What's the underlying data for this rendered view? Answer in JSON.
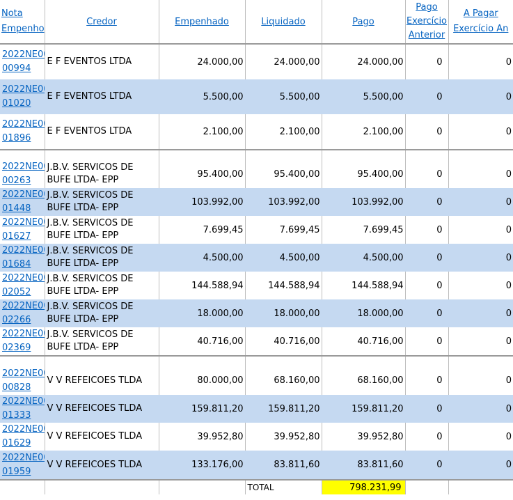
{
  "headers": {
    "nota": [
      "Nota",
      "Empenho"
    ],
    "credor": "Credor",
    "empenhado": "Empenhado",
    "liquidado": "Liquidado",
    "pago": "Pago",
    "pago_exercicio_anterior": [
      "Pago",
      "Exercício",
      "Anterior"
    ],
    "a_pagar": [
      "A Pagar",
      "Exercício An"
    ]
  },
  "colors": {
    "link": "#0563c1",
    "band": "#c5d9f1",
    "total_highlight": "#ffff00"
  },
  "groups": [
    {
      "rows": [
        {
          "nota": [
            "2022NE00",
            "00994"
          ],
          "credor": [
            "E F EVENTOS LTDA"
          ],
          "empenhado": "24.000,00",
          "liquidado": "24.000,00",
          "pago": "24.000,00",
          "pago_ant": "0",
          "a_pagar": "0"
        },
        {
          "nota": [
            "2022NE00",
            "01020"
          ],
          "credor": [
            "E F EVENTOS LTDA"
          ],
          "empenhado": "5.500,00",
          "liquidado": "5.500,00",
          "pago": "5.500,00",
          "pago_ant": "0",
          "a_pagar": "0"
        },
        {
          "nota": [
            "2022NE00",
            "01896"
          ],
          "credor": [
            "E F EVENTOS LTDA"
          ],
          "empenhado": "2.100,00",
          "liquidado": "2.100,00",
          "pago": "2.100,00",
          "pago_ant": "0",
          "a_pagar": "0"
        }
      ]
    },
    {
      "rows": [
        {
          "nota": [
            "2022NE00",
            "00263"
          ],
          "credor": [
            "J.B.V. SERVICOS DE",
            "BUFE LTDA- EPP"
          ],
          "empenhado": "95.400,00",
          "liquidado": "95.400,00",
          "pago": "95.400,00",
          "pago_ant": "0",
          "a_pagar": "0"
        },
        {
          "nota": [
            "2022NE00",
            "01448"
          ],
          "credor": [
            "J.B.V. SERVICOS DE",
            "BUFE LTDA- EPP"
          ],
          "empenhado": "103.992,00",
          "liquidado": "103.992,00",
          "pago": "103.992,00",
          "pago_ant": "0",
          "a_pagar": "0"
        },
        {
          "nota": [
            "2022NE00",
            "01627"
          ],
          "credor": [
            "J.B.V. SERVICOS DE",
            "BUFE LTDA- EPP"
          ],
          "empenhado": "7.699,45",
          "liquidado": "7.699,45",
          "pago": "7.699,45",
          "pago_ant": "0",
          "a_pagar": "0"
        },
        {
          "nota": [
            "2022NE00",
            "01684"
          ],
          "credor": [
            "J.B.V. SERVICOS DE",
            "BUFE LTDA- EPP"
          ],
          "empenhado": "4.500,00",
          "liquidado": "4.500,00",
          "pago": "4.500,00",
          "pago_ant": "0",
          "a_pagar": "0"
        },
        {
          "nota": [
            "2022NE00",
            "02052"
          ],
          "credor": [
            "J.B.V. SERVICOS DE",
            "BUFE LTDA- EPP"
          ],
          "empenhado": "144.588,94",
          "liquidado": "144.588,94",
          "pago": "144.588,94",
          "pago_ant": "0",
          "a_pagar": "0"
        },
        {
          "nota": [
            "2022NE00",
            "02266"
          ],
          "credor": [
            "J.B.V. SERVICOS DE",
            "BUFE LTDA- EPP"
          ],
          "empenhado": "18.000,00",
          "liquidado": "18.000,00",
          "pago": "18.000,00",
          "pago_ant": "0",
          "a_pagar": "0"
        },
        {
          "nota": [
            "2022NE00",
            "02369"
          ],
          "credor": [
            "J.B.V. SERVICOS DE",
            "BUFE LTDA- EPP"
          ],
          "empenhado": "40.716,00",
          "liquidado": "40.716,00",
          "pago": "40.716,00",
          "pago_ant": "0",
          "a_pagar": "0"
        }
      ]
    },
    {
      "rows": [
        {
          "nota": [
            "2022NE00",
            "00828"
          ],
          "credor": [
            "V V REFEICOES TLDA"
          ],
          "empenhado": "80.000,00",
          "liquidado": "68.160,00",
          "pago": "68.160,00",
          "pago_ant": "0",
          "a_pagar": "0"
        },
        {
          "nota": [
            "2022NE00",
            "01333"
          ],
          "credor": [
            "V V REFEICOES TLDA"
          ],
          "empenhado": "159.811,20",
          "liquidado": "159.811,20",
          "pago": "159.811,20",
          "pago_ant": "0",
          "a_pagar": "0"
        },
        {
          "nota": [
            "2022NE00",
            "01629"
          ],
          "credor": [
            "V V REFEICOES TLDA"
          ],
          "empenhado": "39.952,80",
          "liquidado": "39.952,80",
          "pago": "39.952,80",
          "pago_ant": "0",
          "a_pagar": "0"
        },
        {
          "nota": [
            "2022NE00",
            "01959"
          ],
          "credor": [
            "V V REFEICOES TLDA"
          ],
          "empenhado": "133.176,00",
          "liquidado": "83.811,60",
          "pago": "83.811,60",
          "pago_ant": "0",
          "a_pagar": "0"
        }
      ]
    }
  ],
  "total": {
    "label": "TOTAL",
    "value": "798.231,99"
  }
}
